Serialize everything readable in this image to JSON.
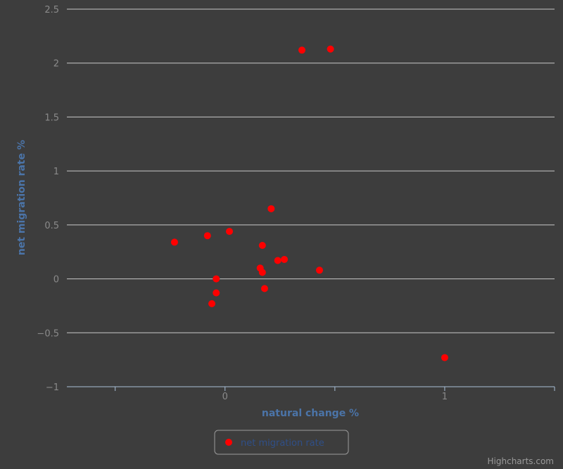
{
  "chart_data": {
    "type": "scatter",
    "xlabel": "natural change %",
    "ylabel": "net migration rate %",
    "xlim": [
      -0.72,
      1.5
    ],
    "ylim": [
      -1,
      2.5
    ],
    "x_ticks": [
      0,
      1
    ],
    "y_ticks": [
      -1,
      -0.5,
      0,
      0.5,
      1,
      1.5,
      2,
      2.5
    ],
    "y_tick_labels": [
      "−1",
      "−0.5",
      "0",
      "0.5",
      "1",
      "1.5",
      "2",
      "2.5"
    ],
    "x_tick_labels": [
      "0",
      "1"
    ],
    "grid": "horizontal",
    "legend_position": "bottom-center",
    "series": [
      {
        "name": "net migration rate",
        "color": "#ff0000",
        "points": [
          [
            -0.23,
            0.34
          ],
          [
            -0.08,
            0.4
          ],
          [
            0.02,
            0.44
          ],
          [
            0.21,
            0.65
          ],
          [
            0.35,
            2.12
          ],
          [
            0.48,
            2.13
          ],
          [
            0.17,
            0.31
          ],
          [
            0.16,
            0.1
          ],
          [
            0.17,
            0.06
          ],
          [
            0.24,
            0.17
          ],
          [
            0.27,
            0.18
          ],
          [
            0.43,
            0.08
          ],
          [
            -0.04,
            0.0
          ],
          [
            -0.04,
            -0.13
          ],
          [
            -0.06,
            -0.23
          ],
          [
            0.18,
            -0.09
          ],
          [
            1.0,
            -0.73
          ]
        ]
      }
    ]
  },
  "credits": "Highcharts.com"
}
